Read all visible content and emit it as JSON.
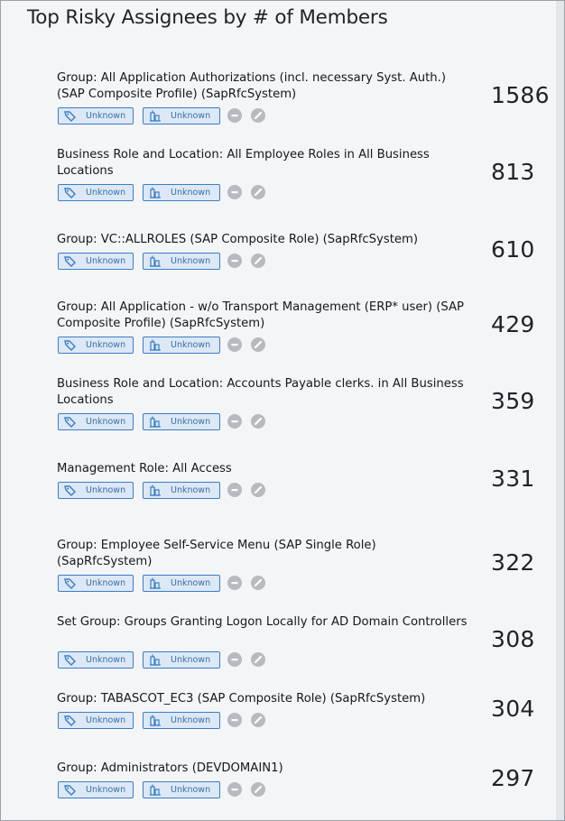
{
  "title": "Top Risky Assignees by # of Members",
  "tag_labels": {
    "tag1": "Unknown",
    "tag2": "Unknown"
  },
  "icons": [
    "tag-icon",
    "building-icon",
    "dash-circle-icon",
    "link-circle-icon"
  ],
  "colors": {
    "tag_border": "#3b7dc4",
    "tag_bg": "#dce8f6",
    "circle": "#b7bbbf"
  },
  "rows": [
    {
      "name": "Group: All Application Authorizations (incl. necessary Syst. Auth.) (SAP Composite Profile) (SapRfcSystem)",
      "count": "1586"
    },
    {
      "name": "Business Role and Location: All Employee Roles in All Business Locations",
      "count": "813"
    },
    {
      "name": "Group: VC::ALLROLES (SAP Composite Role) (SapRfcSystem)",
      "count": "610"
    },
    {
      "name": "Group: All Application - w/o Transport Management (ERP* user) (SAP Composite Profile) (SapRfcSystem)",
      "count": "429"
    },
    {
      "name": "Business Role and Location: Accounts Payable clerks. in All Business Locations",
      "count": "359"
    },
    {
      "name": "Management Role: All Access",
      "count": "331"
    },
    {
      "name": "Group: Employee Self-Service Menu (SAP Single Role) (SapRfcSystem)",
      "count": "322"
    },
    {
      "name": "Set Group: Groups Granting Logon Locally for AD Domain Controllers",
      "count": "308"
    },
    {
      "name": "Group: TABASCOT_EC3 (SAP Composite Role) (SapRfcSystem)",
      "count": "304"
    },
    {
      "name": "Group: Administrators (DEVDOMAIN1)",
      "count": "297"
    }
  ]
}
